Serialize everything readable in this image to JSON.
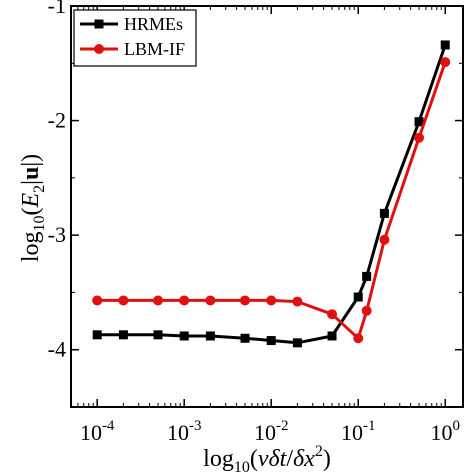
{
  "chart_data": {
    "type": "line",
    "title": "",
    "xlabel": "log10(νδt/δx²)",
    "ylabel": "log10(E2|u|)",
    "xscale": "log",
    "xlim": [
      5e-05,
      1.6
    ],
    "ylim": [
      -4.5,
      -1.0
    ],
    "grid": false,
    "legend_position": "top-left",
    "x_ticks": [
      {
        "value": 0.0001,
        "base": "10",
        "exp": "-4"
      },
      {
        "value": 0.001,
        "base": "10",
        "exp": "-3"
      },
      {
        "value": 0.01,
        "base": "10",
        "exp": "-2"
      },
      {
        "value": 0.1,
        "base": "10",
        "exp": "-1"
      },
      {
        "value": 1,
        "base": "10",
        "exp": "0"
      }
    ],
    "y_ticks": [
      {
        "value": -1,
        "label": "-1"
      },
      {
        "value": -2,
        "label": "-2"
      },
      {
        "value": -3,
        "label": "-3"
      },
      {
        "value": -4,
        "label": "-4"
      }
    ],
    "series": [
      {
        "name": "HRMEs",
        "color": "#000000",
        "marker": "square",
        "x": [
          0.0001,
          0.0002,
          0.0005,
          0.001,
          0.002,
          0.005,
          0.01,
          0.02,
          0.05,
          0.1,
          0.125,
          0.2,
          0.5,
          1.0
        ],
        "y": [
          -3.87,
          -3.87,
          -3.87,
          -3.88,
          -3.88,
          -3.9,
          -3.92,
          -3.94,
          -3.88,
          -3.54,
          -3.36,
          -2.81,
          -2.01,
          -1.34
        ]
      },
      {
        "name": "LBM-IF",
        "color": "#e01010",
        "marker": "circle",
        "x": [
          0.0001,
          0.0002,
          0.0005,
          0.001,
          0.002,
          0.005,
          0.01,
          0.02,
          0.05,
          0.1,
          0.125,
          0.2,
          0.5,
          1.0
        ],
        "y": [
          -3.57,
          -3.57,
          -3.57,
          -3.57,
          -3.57,
          -3.57,
          -3.57,
          -3.58,
          -3.69,
          -3.9,
          -3.66,
          -3.04,
          -2.15,
          -1.49
        ]
      }
    ]
  }
}
